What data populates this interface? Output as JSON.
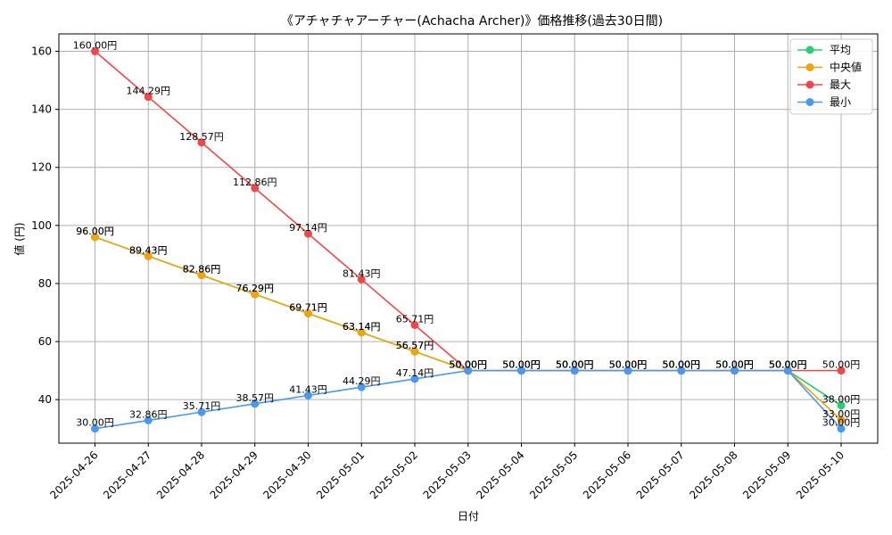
{
  "chart_data": {
    "type": "line",
    "title": "《アチャチャアーチャー(Achacha Archer)》価格推移(過去30日間)",
    "xlabel": "日付",
    "ylabel": "値 (円)",
    "categories": [
      "2025-04-26",
      "2025-04-27",
      "2025-04-28",
      "2025-04-29",
      "2025-04-30",
      "2025-05-01",
      "2025-05-02",
      "2025-05-03",
      "2025-05-04",
      "2025-05-05",
      "2025-05-06",
      "2025-05-07",
      "2025-05-08",
      "2025-05-09",
      "2025-05-10"
    ],
    "ylim": [
      25,
      166
    ],
    "yticks": [
      40,
      60,
      80,
      100,
      120,
      140,
      160
    ],
    "grid": true,
    "legend_position": "top-right",
    "series": [
      {
        "name": "平均",
        "color": "#2ecc71",
        "values": [
          96.0,
          89.43,
          82.86,
          76.29,
          69.71,
          63.14,
          56.57,
          50.0,
          50.0,
          50.0,
          50.0,
          50.0,
          50.0,
          50.0,
          38.0
        ],
        "labels": [
          "96.00円",
          "89.43円",
          "82.86円",
          "76.29円",
          "69.71円",
          "63.14円",
          "56.57円",
          "50.00円",
          "50.00円",
          "50.00円",
          "50.00円",
          "50.00円",
          "50.00円",
          "50.00円",
          "38.00円"
        ]
      },
      {
        "name": "中央値",
        "color": "#f0a30a",
        "values": [
          96.0,
          89.43,
          82.86,
          76.29,
          69.71,
          63.14,
          56.57,
          50.0,
          50.0,
          50.0,
          50.0,
          50.0,
          50.0,
          50.0,
          33.0
        ],
        "labels": [
          "96.00円",
          "89.43円",
          "82.86円",
          "76.29円",
          "69.71円",
          "63.14円",
          "56.57円",
          "50.00円",
          "50.00円",
          "50.00円",
          "50.00円",
          "50.00円",
          "50.00円",
          "50.00円",
          "33.00円"
        ]
      },
      {
        "name": "最大",
        "color": "#f04848",
        "values": [
          160.0,
          144.29,
          128.57,
          112.86,
          97.14,
          81.43,
          65.71,
          50.0,
          50.0,
          50.0,
          50.0,
          50.0,
          50.0,
          50.0,
          50.0
        ],
        "labels": [
          "160.00円",
          "144.29円",
          "128.57円",
          "112.86円",
          "97.14円",
          "81.43円",
          "65.71円",
          "50.00円",
          "50.00円",
          "50.00円",
          "50.00円",
          "50.00円",
          "50.00円",
          "50.00円",
          "50.00円"
        ]
      },
      {
        "name": "最小",
        "color": "#4a98f0",
        "values": [
          30.0,
          32.86,
          35.71,
          38.57,
          41.43,
          44.29,
          47.14,
          50.0,
          50.0,
          50.0,
          50.0,
          50.0,
          50.0,
          50.0,
          30.0
        ],
        "labels": [
          "30.00円",
          "32.86円",
          "35.71円",
          "38.57円",
          "41.43円",
          "44.29円",
          "47.14円",
          "50.00円",
          "50.00円",
          "50.00円",
          "50.00円",
          "50.00円",
          "50.00円",
          "50.00円",
          "30.00円"
        ]
      }
    ]
  }
}
